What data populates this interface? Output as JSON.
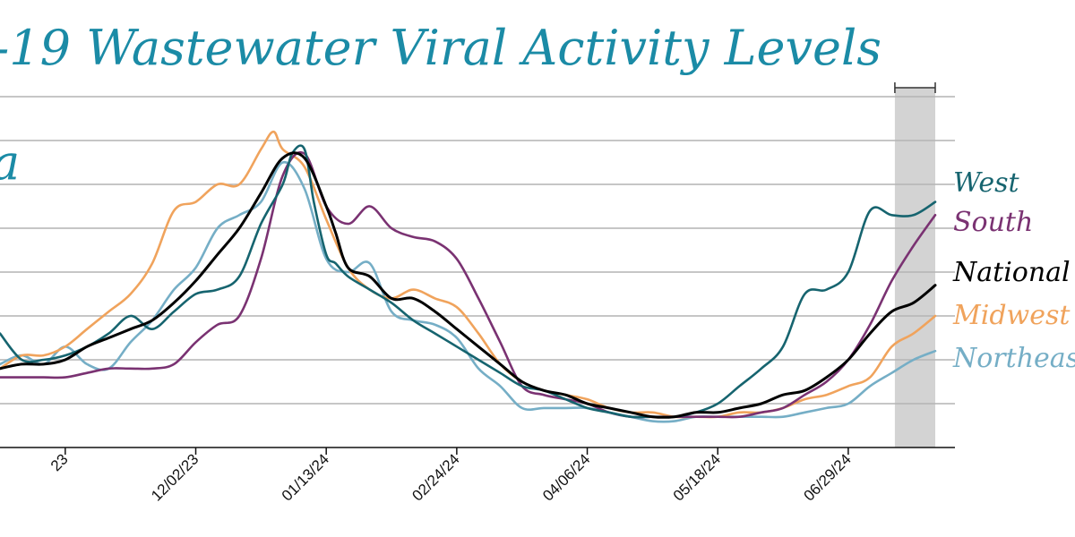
{
  "title": "-19 Wastewater Viral Activity Levels",
  "left_fragment": "a",
  "colors": {
    "title": "#1b8ba6",
    "grid": "#b4b4b4",
    "axis": "#111111",
    "shade": "#d3d3d3"
  },
  "chart_data": {
    "type": "line",
    "xlabel": "",
    "ylabel": "",
    "x_range": [
      "2023-09-30",
      "2024-07-27"
    ],
    "y_range": [
      0,
      8
    ],
    "grid": true,
    "shaded_period": [
      "2024-07-14",
      "2024-07-27"
    ],
    "x_ticks": [
      "23",
      "12/02/23",
      "01/13/24",
      "02/24/24",
      "04/06/24",
      "05/18/24",
      "06/29/24"
    ],
    "x_tick_dates": [
      "2023-10-21",
      "2023-12-02",
      "2024-01-13",
      "2024-02-24",
      "2024-04-06",
      "2024-05-18",
      "2024-06-29"
    ],
    "legend_placement": "right",
    "series": [
      {
        "name": "West",
        "color": "#16646f",
        "points": [
          [
            "2023-09-30",
            2.6
          ],
          [
            "2023-10-07",
            2.0
          ],
          [
            "2023-10-14",
            2.0
          ],
          [
            "2023-10-21",
            2.1
          ],
          [
            "2023-10-28",
            2.3
          ],
          [
            "2023-11-04",
            2.6
          ],
          [
            "2023-11-11",
            3.0
          ],
          [
            "2023-11-18",
            2.7
          ],
          [
            "2023-11-25",
            3.1
          ],
          [
            "2023-12-02",
            3.5
          ],
          [
            "2023-12-09",
            3.6
          ],
          [
            "2023-12-16",
            3.9
          ],
          [
            "2023-12-23",
            5.1
          ],
          [
            "2023-12-30",
            6.0
          ],
          [
            "2024-01-02",
            6.7
          ],
          [
            "2024-01-06",
            6.8
          ],
          [
            "2024-01-09",
            5.6
          ],
          [
            "2024-01-13",
            4.4
          ],
          [
            "2024-01-16",
            4.2
          ],
          [
            "2024-01-20",
            3.9
          ],
          [
            "2024-01-27",
            3.6
          ],
          [
            "2024-02-03",
            3.3
          ],
          [
            "2024-02-10",
            2.9
          ],
          [
            "2024-02-17",
            2.6
          ],
          [
            "2024-02-24",
            2.3
          ],
          [
            "2024-03-02",
            2.0
          ],
          [
            "2024-03-09",
            1.7
          ],
          [
            "2024-03-16",
            1.4
          ],
          [
            "2024-03-23",
            1.3
          ],
          [
            "2024-03-30",
            1.1
          ],
          [
            "2024-04-06",
            0.9
          ],
          [
            "2024-04-13",
            0.8
          ],
          [
            "2024-04-20",
            0.7
          ],
          [
            "2024-04-27",
            0.7
          ],
          [
            "2024-05-04",
            0.7
          ],
          [
            "2024-05-11",
            0.8
          ],
          [
            "2024-05-18",
            1.0
          ],
          [
            "2024-05-25",
            1.4
          ],
          [
            "2024-06-01",
            1.8
          ],
          [
            "2024-06-08",
            2.3
          ],
          [
            "2024-06-15",
            3.5
          ],
          [
            "2024-06-22",
            3.6
          ],
          [
            "2024-06-29",
            4.0
          ],
          [
            "2024-07-06",
            5.4
          ],
          [
            "2024-07-13",
            5.3
          ],
          [
            "2024-07-20",
            5.3
          ],
          [
            "2024-07-27",
            5.6
          ]
        ]
      },
      {
        "name": "South",
        "color": "#7a3272",
        "points": [
          [
            "2023-09-30",
            1.6
          ],
          [
            "2023-10-07",
            1.6
          ],
          [
            "2023-10-14",
            1.6
          ],
          [
            "2023-10-21",
            1.6
          ],
          [
            "2023-10-28",
            1.7
          ],
          [
            "2023-11-04",
            1.8
          ],
          [
            "2023-11-11",
            1.8
          ],
          [
            "2023-11-18",
            1.8
          ],
          [
            "2023-11-25",
            1.9
          ],
          [
            "2023-12-02",
            2.4
          ],
          [
            "2023-12-09",
            2.8
          ],
          [
            "2023-12-16",
            3.0
          ],
          [
            "2023-12-23",
            4.3
          ],
          [
            "2023-12-30",
            6.2
          ],
          [
            "2024-01-06",
            6.7
          ],
          [
            "2024-01-13",
            5.5
          ],
          [
            "2024-01-20",
            5.1
          ],
          [
            "2024-01-27",
            5.5
          ],
          [
            "2024-02-03",
            5.0
          ],
          [
            "2024-02-10",
            4.8
          ],
          [
            "2024-02-17",
            4.7
          ],
          [
            "2024-02-24",
            4.3
          ],
          [
            "2024-03-02",
            3.4
          ],
          [
            "2024-03-09",
            2.4
          ],
          [
            "2024-03-16",
            1.4
          ],
          [
            "2024-03-23",
            1.2
          ],
          [
            "2024-03-30",
            1.1
          ],
          [
            "2024-04-06",
            1.0
          ],
          [
            "2024-04-13",
            0.8
          ],
          [
            "2024-04-20",
            0.7
          ],
          [
            "2024-04-27",
            0.7
          ],
          [
            "2024-05-04",
            0.7
          ],
          [
            "2024-05-11",
            0.7
          ],
          [
            "2024-05-18",
            0.7
          ],
          [
            "2024-05-25",
            0.7
          ],
          [
            "2024-06-01",
            0.8
          ],
          [
            "2024-06-08",
            0.9
          ],
          [
            "2024-06-15",
            1.2
          ],
          [
            "2024-06-22",
            1.5
          ],
          [
            "2024-06-29",
            2.0
          ],
          [
            "2024-07-06",
            2.8
          ],
          [
            "2024-07-13",
            3.8
          ],
          [
            "2024-07-20",
            4.6
          ],
          [
            "2024-07-27",
            5.3
          ]
        ]
      },
      {
        "name": "National",
        "color": "#000000",
        "points": [
          [
            "2023-09-30",
            1.8
          ],
          [
            "2023-10-07",
            1.9
          ],
          [
            "2023-10-14",
            1.9
          ],
          [
            "2023-10-21",
            2.0
          ],
          [
            "2023-10-28",
            2.3
          ],
          [
            "2023-11-04",
            2.5
          ],
          [
            "2023-11-11",
            2.7
          ],
          [
            "2023-11-18",
            2.9
          ],
          [
            "2023-11-25",
            3.3
          ],
          [
            "2023-12-02",
            3.8
          ],
          [
            "2023-12-09",
            4.4
          ],
          [
            "2023-12-16",
            5.0
          ],
          [
            "2023-12-23",
            5.8
          ],
          [
            "2023-12-30",
            6.6
          ],
          [
            "2024-01-06",
            6.6
          ],
          [
            "2024-01-13",
            5.5
          ],
          [
            "2024-01-16",
            4.9
          ],
          [
            "2024-01-20",
            4.1
          ],
          [
            "2024-01-27",
            3.9
          ],
          [
            "2024-02-03",
            3.4
          ],
          [
            "2024-02-10",
            3.4
          ],
          [
            "2024-02-17",
            3.1
          ],
          [
            "2024-02-24",
            2.7
          ],
          [
            "2024-03-02",
            2.3
          ],
          [
            "2024-03-09",
            1.9
          ],
          [
            "2024-03-16",
            1.5
          ],
          [
            "2024-03-23",
            1.3
          ],
          [
            "2024-03-30",
            1.2
          ],
          [
            "2024-04-06",
            1.0
          ],
          [
            "2024-04-13",
            0.9
          ],
          [
            "2024-04-20",
            0.8
          ],
          [
            "2024-04-27",
            0.7
          ],
          [
            "2024-05-04",
            0.7
          ],
          [
            "2024-05-11",
            0.8
          ],
          [
            "2024-05-18",
            0.8
          ],
          [
            "2024-05-25",
            0.9
          ],
          [
            "2024-06-01",
            1.0
          ],
          [
            "2024-06-08",
            1.2
          ],
          [
            "2024-06-15",
            1.3
          ],
          [
            "2024-06-22",
            1.6
          ],
          [
            "2024-06-29",
            2.0
          ],
          [
            "2024-07-06",
            2.6
          ],
          [
            "2024-07-13",
            3.1
          ],
          [
            "2024-07-20",
            3.3
          ],
          [
            "2024-07-27",
            3.7
          ]
        ]
      },
      {
        "name": "Midwest",
        "color": "#f0a35c",
        "points": [
          [
            "2023-09-30",
            1.8
          ],
          [
            "2023-10-07",
            2.1
          ],
          [
            "2023-10-14",
            2.1
          ],
          [
            "2023-10-21",
            2.3
          ],
          [
            "2023-10-28",
            2.7
          ],
          [
            "2023-11-04",
            3.1
          ],
          [
            "2023-11-11",
            3.5
          ],
          [
            "2023-11-18",
            4.2
          ],
          [
            "2023-11-25",
            5.4
          ],
          [
            "2023-12-02",
            5.6
          ],
          [
            "2023-12-09",
            6.0
          ],
          [
            "2023-12-16",
            6.0
          ],
          [
            "2023-12-23",
            6.8
          ],
          [
            "2023-12-27",
            7.2
          ],
          [
            "2023-12-30",
            6.8
          ],
          [
            "2024-01-06",
            6.4
          ],
          [
            "2024-01-13",
            5.2
          ],
          [
            "2024-01-20",
            4.1
          ],
          [
            "2024-01-27",
            3.6
          ],
          [
            "2024-02-03",
            3.4
          ],
          [
            "2024-02-10",
            3.6
          ],
          [
            "2024-02-17",
            3.4
          ],
          [
            "2024-02-24",
            3.2
          ],
          [
            "2024-03-02",
            2.6
          ],
          [
            "2024-03-09",
            1.9
          ],
          [
            "2024-03-16",
            1.5
          ],
          [
            "2024-03-23",
            1.3
          ],
          [
            "2024-03-30",
            1.2
          ],
          [
            "2024-04-06",
            1.1
          ],
          [
            "2024-04-13",
            0.9
          ],
          [
            "2024-04-20",
            0.8
          ],
          [
            "2024-04-27",
            0.8
          ],
          [
            "2024-05-04",
            0.7
          ],
          [
            "2024-05-11",
            0.7
          ],
          [
            "2024-05-18",
            0.7
          ],
          [
            "2024-05-25",
            0.8
          ],
          [
            "2024-06-01",
            0.8
          ],
          [
            "2024-06-08",
            0.9
          ],
          [
            "2024-06-15",
            1.1
          ],
          [
            "2024-06-22",
            1.2
          ],
          [
            "2024-06-29",
            1.4
          ],
          [
            "2024-07-06",
            1.6
          ],
          [
            "2024-07-13",
            2.3
          ],
          [
            "2024-07-20",
            2.6
          ],
          [
            "2024-07-27",
            3.0
          ]
        ]
      },
      {
        "name": "Northeast",
        "color": "#75aec6",
        "points": [
          [
            "2023-09-30",
            1.9
          ],
          [
            "2023-10-07",
            2.1
          ],
          [
            "2023-10-14",
            1.9
          ],
          [
            "2023-10-21",
            2.3
          ],
          [
            "2023-10-28",
            1.9
          ],
          [
            "2023-11-04",
            1.8
          ],
          [
            "2023-11-11",
            2.4
          ],
          [
            "2023-11-18",
            2.9
          ],
          [
            "2023-11-25",
            3.6
          ],
          [
            "2023-12-02",
            4.1
          ],
          [
            "2023-12-09",
            5.0
          ],
          [
            "2023-12-16",
            5.3
          ],
          [
            "2023-12-23",
            5.6
          ],
          [
            "2023-12-30",
            6.5
          ],
          [
            "2024-01-06",
            5.9
          ],
          [
            "2024-01-13",
            4.3
          ],
          [
            "2024-01-20",
            4.0
          ],
          [
            "2024-01-27",
            4.2
          ],
          [
            "2024-02-03",
            3.1
          ],
          [
            "2024-02-10",
            2.9
          ],
          [
            "2024-02-17",
            2.8
          ],
          [
            "2024-02-24",
            2.5
          ],
          [
            "2024-03-02",
            1.8
          ],
          [
            "2024-03-09",
            1.4
          ],
          [
            "2024-03-16",
            0.9
          ],
          [
            "2024-03-23",
            0.9
          ],
          [
            "2024-03-30",
            0.9
          ],
          [
            "2024-04-06",
            0.9
          ],
          [
            "2024-04-13",
            0.8
          ],
          [
            "2024-04-20",
            0.7
          ],
          [
            "2024-04-27",
            0.6
          ],
          [
            "2024-05-04",
            0.6
          ],
          [
            "2024-05-11",
            0.7
          ],
          [
            "2024-05-18",
            0.7
          ],
          [
            "2024-05-25",
            0.7
          ],
          [
            "2024-06-01",
            0.7
          ],
          [
            "2024-06-08",
            0.7
          ],
          [
            "2024-06-15",
            0.8
          ],
          [
            "2024-06-22",
            0.9
          ],
          [
            "2024-06-29",
            1.0
          ],
          [
            "2024-07-06",
            1.4
          ],
          [
            "2024-07-13",
            1.7
          ],
          [
            "2024-07-20",
            2.0
          ],
          [
            "2024-07-27",
            2.2
          ]
        ]
      }
    ]
  }
}
